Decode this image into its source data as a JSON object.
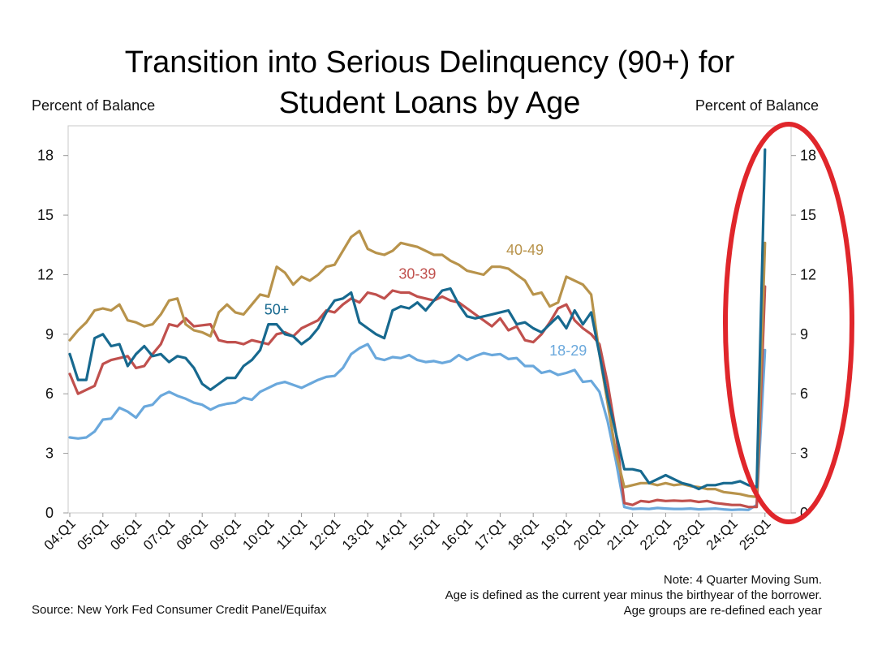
{
  "page": {
    "title_line1": "Transition into Serious Delinquency (90+) for",
    "title_line2": "Student Loans by Age",
    "ylabel_left": "Percent of Balance",
    "ylabel_right": "Percent of Balance",
    "note_line1": "Note: 4 Quarter Moving Sum.",
    "note_line2": "Age is defined as the current year minus the birthyear of the borrower.",
    "note_line3": "Age groups are re-defined each year",
    "source": "Source: New York Fed Consumer Credit Panel/Equifax"
  },
  "chart_data": {
    "type": "line",
    "title": "Transition into Serious Delinquency (90+) for Student Loans by Age",
    "ylabel": "Percent of Balance",
    "ylim": [
      0,
      19.5
    ],
    "yticks": [
      0,
      3,
      6,
      9,
      12,
      15,
      18
    ],
    "grid": false,
    "dual_y_axis": true,
    "x_tick_labels": [
      "04:Q1",
      "05:Q1",
      "06:Q1",
      "07:Q1",
      "08:Q1",
      "09:Q1",
      "10:Q1",
      "11:Q1",
      "12:Q1",
      "13:Q1",
      "14:Q1",
      "15:Q1",
      "16:Q1",
      "17:Q1",
      "18:Q1",
      "19:Q1",
      "20:Q1",
      "21:Q1",
      "22:Q1",
      "23:Q1",
      "24:Q1",
      "25:Q1"
    ],
    "x_start": "2004:Q1",
    "frequency": "quarterly",
    "series": [
      {
        "name": "18-29",
        "color": "#6aa8dc",
        "label_at": "2019:Q2",
        "values": [
          3.8,
          3.75,
          3.8,
          4.1,
          4.7,
          4.75,
          5.3,
          5.1,
          4.8,
          5.35,
          5.45,
          5.9,
          6.1,
          5.9,
          5.75,
          5.55,
          5.45,
          5.2,
          5.4,
          5.5,
          5.55,
          5.8,
          5.7,
          6.1,
          6.3,
          6.5,
          6.6,
          6.45,
          6.3,
          6.5,
          6.7,
          6.85,
          6.9,
          7.3,
          8.0,
          8.3,
          8.5,
          7.8,
          7.7,
          7.85,
          7.8,
          7.95,
          7.7,
          7.6,
          7.65,
          7.55,
          7.65,
          7.95,
          7.7,
          7.9,
          8.05,
          7.95,
          8.0,
          7.75,
          7.8,
          7.4,
          7.4,
          7.05,
          7.15,
          6.95,
          7.05,
          7.2,
          6.6,
          6.65,
          6.1,
          4.6,
          2.6,
          0.3,
          0.2,
          0.22,
          0.2,
          0.25,
          0.22,
          0.2,
          0.2,
          0.22,
          0.18,
          0.2,
          0.22,
          0.18,
          0.15,
          0.17,
          0.15,
          0.4,
          8.2
        ]
      },
      {
        "name": "30-39",
        "color": "#c0504d",
        "label_at": "2014:Q3",
        "values": [
          7.0,
          6.0,
          6.2,
          6.4,
          7.5,
          7.7,
          7.8,
          7.9,
          7.3,
          7.4,
          8.0,
          8.5,
          9.5,
          9.4,
          9.8,
          9.4,
          9.45,
          9.5,
          8.7,
          8.6,
          8.6,
          8.5,
          8.7,
          8.6,
          8.5,
          9.0,
          9.1,
          8.9,
          9.3,
          9.5,
          9.7,
          10.2,
          10.1,
          10.5,
          10.8,
          10.6,
          11.1,
          11.0,
          10.8,
          11.2,
          11.1,
          11.1,
          10.9,
          10.8,
          10.7,
          10.9,
          10.7,
          10.6,
          10.3,
          10.0,
          9.7,
          9.4,
          9.8,
          9.2,
          9.4,
          8.7,
          8.6,
          9.0,
          9.6,
          10.3,
          10.5,
          9.7,
          9.3,
          9.0,
          8.5,
          6.5,
          4.0,
          0.5,
          0.4,
          0.6,
          0.55,
          0.65,
          0.6,
          0.62,
          0.6,
          0.62,
          0.55,
          0.6,
          0.5,
          0.45,
          0.4,
          0.4,
          0.3,
          0.3,
          11.4
        ]
      },
      {
        "name": "40-49",
        "color": "#b8934b",
        "label_at": "2017:Q4",
        "values": [
          8.7,
          9.2,
          9.6,
          10.2,
          10.3,
          10.2,
          10.5,
          9.7,
          9.6,
          9.4,
          9.5,
          10.0,
          10.7,
          10.8,
          9.5,
          9.2,
          9.1,
          8.9,
          10.1,
          10.5,
          10.1,
          10.0,
          10.5,
          11.0,
          10.9,
          12.4,
          12.1,
          11.5,
          11.9,
          11.7,
          12.0,
          12.4,
          12.5,
          13.2,
          13.9,
          14.2,
          13.3,
          13.1,
          13.0,
          13.2,
          13.6,
          13.5,
          13.4,
          13.2,
          13.0,
          13.0,
          12.7,
          12.5,
          12.2,
          12.1,
          12.0,
          12.4,
          12.4,
          12.3,
          12.0,
          11.7,
          11.0,
          11.1,
          10.4,
          10.6,
          11.9,
          11.7,
          11.5,
          11.0,
          8.0,
          5.5,
          3.0,
          1.3,
          1.4,
          1.5,
          1.5,
          1.4,
          1.5,
          1.4,
          1.45,
          1.35,
          1.3,
          1.2,
          1.2,
          1.05,
          1.0,
          0.95,
          0.85,
          0.8,
          13.6
        ]
      },
      {
        "name": "50+",
        "color": "#17698f",
        "label_at": "2010:Q2",
        "values": [
          8.0,
          6.7,
          6.7,
          8.8,
          9.0,
          8.4,
          8.5,
          7.4,
          8.0,
          8.4,
          7.9,
          8.0,
          7.6,
          7.9,
          7.8,
          7.3,
          6.5,
          6.2,
          6.5,
          6.8,
          6.8,
          7.4,
          7.7,
          8.2,
          9.5,
          9.5,
          9.0,
          8.9,
          8.5,
          8.8,
          9.3,
          10.1,
          10.7,
          10.8,
          11.1,
          9.6,
          9.3,
          9.0,
          8.8,
          10.2,
          10.4,
          10.3,
          10.6,
          10.2,
          10.7,
          11.2,
          11.3,
          10.5,
          9.9,
          9.8,
          9.9,
          10.0,
          10.1,
          10.2,
          9.5,
          9.6,
          9.3,
          9.1,
          9.5,
          9.9,
          9.3,
          10.2,
          9.5,
          10.1,
          8.0,
          5.8,
          4.0,
          2.2,
          2.2,
          2.1,
          1.5,
          1.7,
          1.9,
          1.7,
          1.5,
          1.4,
          1.2,
          1.4,
          1.4,
          1.5,
          1.5,
          1.6,
          1.4,
          1.3,
          18.3
        ]
      }
    ],
    "annotation": "red ellipse highlighting 2024–2025 spike"
  }
}
